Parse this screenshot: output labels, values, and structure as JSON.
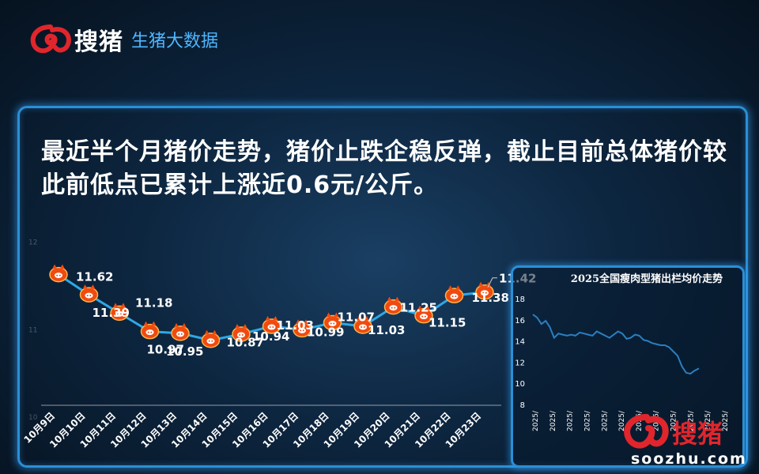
{
  "header": {
    "logo_name": "搜猪",
    "subtitle": "生猪大数据"
  },
  "headline": "最近半个月猪价走势，猪价止跌企稳反弹，截止目前总体猪价较此前低点已累计上涨近0.6元/公斤。",
  "chart_data": [
    {
      "type": "line",
      "categories": [
        "10月9日",
        "10月10日",
        "10月11日",
        "10月12日",
        "10月13日",
        "10月14日",
        "10月15日",
        "10月16日",
        "10月17日",
        "10月18日",
        "10月19日",
        "10月20日",
        "10月21日",
        "10月22日",
        "10月23日"
      ],
      "series": [
        {
          "values": [
            11.62,
            11.39,
            11.18,
            10.97,
            10.95,
            10.87,
            10.94,
            11.03,
            10.99,
            11.07,
            11.03,
            11.25,
            11.15,
            11.38,
            11.42
          ]
        }
      ],
      "last_label": "11.42",
      "ylim": [
        10.2,
        12.5
      ],
      "yticks": [
        "12",
        "11",
        "10"
      ],
      "grid": false,
      "line_color": "#2ea8e6",
      "marker": "pig-icon"
    },
    {
      "type": "line",
      "title": "2025全国瘦肉型猪出栏均价走势",
      "ylim": [
        8,
        18
      ],
      "yticks": [
        "18",
        "16",
        "14",
        "12",
        "10",
        "8"
      ],
      "xtick_labels": [
        "2025/",
        "2025/",
        "2025/",
        "2025/",
        "2025/",
        "2025/",
        "2025/",
        "2025/",
        "2025/",
        "2025/",
        "2025/",
        "2025/"
      ],
      "series": [
        {
          "values": [
            16.5,
            16.2,
            15.6,
            15.9,
            15.3,
            14.3,
            14.7,
            14.6,
            14.5,
            14.6,
            14.5,
            14.8,
            14.7,
            14.6,
            14.5,
            14.9,
            14.7,
            14.5,
            14.3,
            14.6,
            14.9,
            14.7,
            14.2,
            14.3,
            14.6,
            14.5,
            14.1,
            14.0,
            13.8,
            13.7,
            13.6,
            13.6,
            13.4,
            13.0,
            12.6,
            11.6,
            11.0,
            10.9,
            11.2,
            11.4
          ]
        }
      ],
      "line_color": "#2a7fc0",
      "grid": false
    }
  ],
  "watermark": {
    "brand": "搜猪",
    "site": "soozhu.com"
  }
}
